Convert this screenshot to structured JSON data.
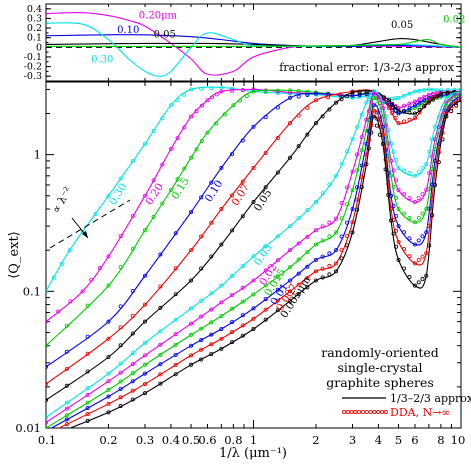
{
  "chart_data": [
    {
      "type": "line",
      "panel": "fractional error",
      "annotation": "fractional error: 1/3-2/3 approx",
      "xscale": "log",
      "xlim": [
        0.1,
        10
      ],
      "ylim": [
        -0.35,
        0.45
      ],
      "yticks": [
        "0.4",
        "0.3",
        "0.2",
        "0.1",
        "0",
        "-0.1",
        "-0.2",
        "-0.3"
      ],
      "reference_line": 0,
      "series": [
        {
          "name": "0.20μm",
          "color": "#ee00ee",
          "x": [
            0.1,
            0.15,
            0.2,
            0.25,
            0.3,
            0.4,
            0.5,
            0.6,
            0.8,
            1.0,
            1.5,
            2,
            3,
            5,
            10
          ],
          "y": [
            0.35,
            0.36,
            0.33,
            0.28,
            0.22,
            0.04,
            -0.12,
            -0.28,
            -0.25,
            -0.1,
            0.0,
            0.01,
            0.01,
            0.01,
            0.0
          ]
        },
        {
          "name": "0.10",
          "color": "#0000ee",
          "x": [
            0.1,
            0.2,
            0.3,
            0.5,
            0.7,
            1.0,
            1.5,
            2,
            3,
            5,
            10
          ],
          "y": [
            0.12,
            0.13,
            0.13,
            0.11,
            0.08,
            0.04,
            0.02,
            0.01,
            0.01,
            0.02,
            0.0
          ]
        },
        {
          "name": "0.05",
          "color": "#000000",
          "x": [
            0.1,
            0.3,
            0.6,
            1.0,
            2,
            3,
            4,
            5,
            6,
            8,
            10
          ],
          "y": [
            0.03,
            0.04,
            0.04,
            0.03,
            0.01,
            0.02,
            0.06,
            0.09,
            0.08,
            0.03,
            0.0
          ]
        },
        {
          "name": "0.30",
          "color": "#00e5e5",
          "x": [
            0.1,
            0.15,
            0.2,
            0.25,
            0.3,
            0.35,
            0.4,
            0.5,
            0.6,
            0.8,
            1.0,
            2,
            5,
            10
          ],
          "y": [
            0.25,
            0.24,
            0.08,
            -0.12,
            -0.25,
            -0.3,
            -0.25,
            0.0,
            0.15,
            0.08,
            0.02,
            0.01,
            0.03,
            0.0
          ]
        },
        {
          "name": "0.02",
          "color": "#00cc00",
          "x": [
            0.1,
            1.0,
            3,
            5,
            6,
            7,
            8,
            10
          ],
          "y": [
            0.01,
            0.01,
            0.02,
            0.03,
            0.06,
            0.08,
            0.03,
            0.0
          ]
        }
      ]
    },
    {
      "type": "line",
      "panel": "extinction efficiency",
      "xlabel": "1/λ (μm⁻¹)",
      "ylabel": "⟨Q_ext⟩",
      "xscale": "log",
      "yscale": "log",
      "xlim": [
        0.1,
        10
      ],
      "ylim": [
        0.01,
        3.4
      ],
      "xticks": [
        "0.1",
        "0.2",
        "0.3",
        "0.4",
        "0.5",
        "0.6",
        "0.8",
        "1",
        "2",
        "3",
        "4",
        "5",
        "6",
        "8",
        "10"
      ],
      "yticks": [
        "0.01",
        "0.1",
        "1"
      ],
      "slope_annotation": {
        "label": "∝ λ⁻²"
      },
      "series": [
        {
          "name": "0.30",
          "color": "#00e5e5",
          "x": [
            0.1,
            0.13,
            0.2,
            0.3,
            0.4,
            0.5,
            0.7,
            1,
            1.5,
            2,
            3,
            3.8,
            4.5,
            5,
            6,
            7,
            8,
            10
          ],
          "y": [
            0.1,
            0.2,
            0.5,
            1.2,
            2.3,
            3.0,
            3.1,
            2.9,
            2.8,
            2.75,
            2.6,
            2.75,
            2.55,
            2.6,
            2.9,
            3.0,
            2.95,
            3.0
          ]
        },
        {
          "name": "0.20",
          "color": "#ee00ee",
          "x": [
            0.1,
            0.15,
            0.2,
            0.3,
            0.4,
            0.5,
            0.6,
            0.7,
            1,
            1.5,
            2,
            3,
            3.8,
            4.5,
            5,
            6,
            7,
            8,
            10
          ],
          "y": [
            0.06,
            0.1,
            0.18,
            0.5,
            1.1,
            1.9,
            2.5,
            2.9,
            3.0,
            2.85,
            2.8,
            2.7,
            2.9,
            2.4,
            2.2,
            2.45,
            2.75,
            2.85,
            2.9
          ]
        },
        {
          "name": "0.15",
          "color": "#00cc00",
          "x": [
            0.1,
            0.2,
            0.3,
            0.4,
            0.5,
            0.6,
            0.8,
            1,
            1.5,
            2,
            3,
            3.8,
            4.5,
            5,
            6,
            7,
            8,
            10
          ],
          "y": [
            0.04,
            0.11,
            0.28,
            0.55,
            0.95,
            1.45,
            2.3,
            2.9,
            2.95,
            2.85,
            2.7,
            2.9,
            2.3,
            2.0,
            2.2,
            2.5,
            2.65,
            2.8
          ]
        },
        {
          "name": "0.10",
          "color": "#0000ee",
          "x": [
            0.1,
            0.2,
            0.3,
            0.5,
            0.7,
            1,
            1.5,
            2,
            3,
            3.8,
            4.5,
            5,
            6,
            7,
            8,
            10
          ],
          "y": [
            0.028,
            0.06,
            0.13,
            0.38,
            0.8,
            1.6,
            2.6,
            2.8,
            2.7,
            2.8,
            2.3,
            2.0,
            2.3,
            2.6,
            2.7,
            2.9
          ]
        },
        {
          "name": "0.07",
          "color": "#ee0000",
          "x": [
            0.1,
            0.2,
            0.3,
            0.5,
            0.7,
            1,
            1.5,
            2,
            3,
            3.8,
            4.5,
            5,
            6,
            7,
            8,
            10
          ],
          "y": [
            0.021,
            0.045,
            0.08,
            0.2,
            0.4,
            0.8,
            1.7,
            2.5,
            2.9,
            2.9,
            2.2,
            1.7,
            1.85,
            2.5,
            2.8,
            2.9
          ]
        },
        {
          "name": "0.05",
          "color": "#000000",
          "x": [
            0.1,
            0.2,
            0.3,
            0.5,
            0.7,
            1,
            1.5,
            2,
            2.5,
            3,
            3.8,
            4.5,
            5,
            6,
            7,
            8,
            10
          ],
          "y": [
            0.016,
            0.033,
            0.06,
            0.12,
            0.22,
            0.45,
            0.95,
            1.7,
            2.4,
            2.85,
            2.9,
            2.5,
            2.1,
            2.0,
            2.4,
            2.8,
            2.9
          ]
        },
        {
          "name": "0.03",
          "color": "#00e5e5",
          "x": [
            0.1,
            0.2,
            0.3,
            0.5,
            0.7,
            1,
            1.5,
            2,
            2.5,
            3,
            3.5,
            3.8,
            4.2,
            4.6,
            5,
            6,
            6.8,
            7.5,
            8.5,
            10
          ],
          "y": [
            0.012,
            0.025,
            0.042,
            0.075,
            0.11,
            0.18,
            0.3,
            0.45,
            0.7,
            1.3,
            2.4,
            2.9,
            2.4,
            1.2,
            0.8,
            0.7,
            0.85,
            1.6,
            2.6,
            2.9
          ]
        },
        {
          "name": "0.02",
          "color": "#ee00ee",
          "x": [
            0.1,
            0.2,
            0.3,
            0.5,
            0.7,
            1,
            1.5,
            2,
            2.5,
            3,
            3.5,
            3.8,
            4.2,
            4.6,
            5,
            6,
            6.8,
            7.5,
            8.5,
            10
          ],
          "y": [
            0.011,
            0.022,
            0.034,
            0.058,
            0.083,
            0.12,
            0.2,
            0.28,
            0.34,
            0.75,
            1.8,
            2.8,
            2.2,
            0.9,
            0.55,
            0.45,
            0.55,
            1.3,
            2.4,
            2.85
          ]
        },
        {
          "name": "0.015",
          "color": "#00cc00",
          "x": [
            0.1,
            0.2,
            0.3,
            0.5,
            0.7,
            1,
            1.5,
            2,
            2.5,
            3,
            3.5,
            3.8,
            4.2,
            4.6,
            5,
            6,
            6.8,
            7.5,
            8.5,
            10
          ],
          "y": [
            0.01,
            0.019,
            0.029,
            0.048,
            0.066,
            0.095,
            0.15,
            0.22,
            0.27,
            0.55,
            1.5,
            2.6,
            1.9,
            0.7,
            0.4,
            0.32,
            0.4,
            1.1,
            2.3,
            2.8
          ]
        },
        {
          "name": "0.01",
          "color": "#0000ee",
          "x": [
            0.1,
            0.2,
            0.3,
            0.5,
            0.7,
            1,
            1.5,
            2,
            2.5,
            3,
            3.5,
            3.8,
            4.2,
            4.6,
            5,
            6,
            6.8,
            7.5,
            8.5,
            10
          ],
          "y": [
            0.0095,
            0.017,
            0.025,
            0.04,
            0.053,
            0.075,
            0.12,
            0.17,
            0.2,
            0.4,
            1.2,
            2.3,
            1.6,
            0.5,
            0.3,
            0.22,
            0.27,
            0.9,
            2.1,
            2.7
          ]
        },
        {
          "name": "0.007",
          "color": "#ee0000",
          "x": [
            0.1,
            0.2,
            0.3,
            0.5,
            0.7,
            1,
            1.5,
            2,
            2.5,
            3,
            3.5,
            3.8,
            4.2,
            4.6,
            5,
            6,
            6.8,
            7.5,
            8.5,
            10
          ],
          "y": [
            0.009,
            0.015,
            0.021,
            0.034,
            0.045,
            0.063,
            0.1,
            0.14,
            0.16,
            0.32,
            1.0,
            2.1,
            1.4,
            0.4,
            0.23,
            0.16,
            0.19,
            0.75,
            2.0,
            2.6
          ]
        },
        {
          "name": "0.005μm",
          "color": "#000000",
          "x": [
            0.1,
            0.2,
            0.3,
            0.5,
            0.7,
            1,
            1.5,
            2,
            2.5,
            3,
            3.5,
            3.8,
            4.2,
            4.6,
            5,
            6,
            6.8,
            7.5,
            8.5,
            10
          ],
          "y": [
            0.0085,
            0.013,
            0.018,
            0.029,
            0.038,
            0.053,
            0.085,
            0.12,
            0.14,
            0.27,
            0.85,
            1.9,
            1.2,
            0.33,
            0.17,
            0.11,
            0.13,
            0.6,
            1.9,
            2.5
          ]
        }
      ],
      "legend": {
        "position": "bottom-right",
        "title_lines": [
          "randomly-oriented",
          "single-crystal",
          "graphite spheres"
        ],
        "entries": [
          {
            "label": "1/3–2/3 approx.",
            "style": "solid line"
          },
          {
            "label": "DDA, N→∞",
            "style": "open circles",
            "color": "#ee0000"
          }
        ]
      }
    }
  ]
}
